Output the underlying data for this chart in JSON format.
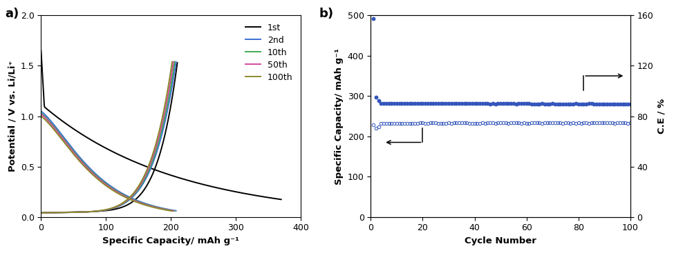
{
  "panel_a": {
    "xlabel": "Specific Capacity/ mAh g⁻¹",
    "ylabel": "Potential / V vs. Li/Li⁺",
    "xlim": [
      0,
      400
    ],
    "ylim": [
      0.0,
      2.0
    ],
    "xticks": [
      0,
      100,
      200,
      300,
      400
    ],
    "yticks": [
      0.0,
      0.5,
      1.0,
      1.5,
      2.0
    ],
    "curves": [
      {
        "label": "1st",
        "color": "#000000",
        "lw": 1.4
      },
      {
        "label": "2nd",
        "color": "#3B6FD4",
        "lw": 1.4
      },
      {
        "label": "10th",
        "color": "#3DAA55",
        "lw": 1.4
      },
      {
        "label": "50th",
        "color": "#D44BA0",
        "lw": 1.4
      },
      {
        "label": "100th",
        "color": "#8B8B2A",
        "lw": 1.4
      }
    ]
  },
  "panel_b": {
    "xlabel": "Cycle Number",
    "ylabel_left": "Specific Capacity/ mAh g⁻¹",
    "ylabel_right": "C.E / %",
    "xlim": [
      0,
      100
    ],
    "ylim_left": [
      0,
      500
    ],
    "ylim_right": [
      0,
      160
    ],
    "xticks": [
      0,
      20,
      40,
      60,
      80,
      100
    ],
    "yticks_left": [
      0,
      100,
      200,
      300,
      400,
      500
    ],
    "yticks_right": [
      0,
      40,
      80,
      120,
      160
    ],
    "dot_color": "#3355BB"
  },
  "figsize": [
    9.75,
    3.67
  ],
  "dpi": 100
}
